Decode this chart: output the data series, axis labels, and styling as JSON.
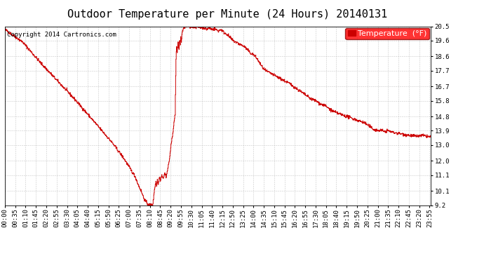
{
  "title": "Outdoor Temperature per Minute (24 Hours) 20140131",
  "copyright_text": "Copyright 2014 Cartronics.com",
  "legend_label": "Temperature  (°F)",
  "line_color": "#cc0000",
  "background_color": "#ffffff",
  "grid_color": "#bbbbbb",
  "ylim": [
    9.2,
    20.5
  ],
  "yticks": [
    9.2,
    10.1,
    11.1,
    12.0,
    13.0,
    13.9,
    14.8,
    15.8,
    16.7,
    17.7,
    18.6,
    19.6,
    20.5
  ],
  "xtick_labels": [
    "00:00",
    "00:35",
    "01:10",
    "01:45",
    "02:20",
    "02:55",
    "03:30",
    "04:05",
    "04:40",
    "05:15",
    "05:50",
    "06:25",
    "07:00",
    "07:35",
    "08:10",
    "08:45",
    "09:20",
    "09:55",
    "10:30",
    "11:05",
    "11:40",
    "12:15",
    "12:50",
    "13:25",
    "14:00",
    "14:35",
    "15:10",
    "15:45",
    "16:20",
    "16:55",
    "17:30",
    "18:05",
    "18:40",
    "19:15",
    "19:50",
    "20:25",
    "21:00",
    "21:35",
    "22:10",
    "22:45",
    "23:20",
    "23:55"
  ],
  "title_fontsize": 11,
  "axis_fontsize": 6.5,
  "copyright_fontsize": 6.5,
  "legend_fontsize": 8,
  "keypoints": [
    [
      0,
      20.3
    ],
    [
      60,
      19.5
    ],
    [
      120,
      18.2
    ],
    [
      180,
      17.0
    ],
    [
      240,
      15.8
    ],
    [
      300,
      14.5
    ],
    [
      360,
      13.2
    ],
    [
      400,
      12.2
    ],
    [
      420,
      11.6
    ],
    [
      440,
      11.0
    ],
    [
      450,
      10.5
    ],
    [
      460,
      10.1
    ],
    [
      470,
      9.6
    ],
    [
      480,
      9.3
    ],
    [
      490,
      9.2
    ],
    [
      500,
      9.25
    ],
    [
      505,
      10.2
    ],
    [
      510,
      10.7
    ],
    [
      512,
      10.4
    ],
    [
      515,
      10.8
    ],
    [
      518,
      10.5
    ],
    [
      522,
      11.0
    ],
    [
      525,
      10.8
    ],
    [
      530,
      11.1
    ],
    [
      535,
      10.9
    ],
    [
      540,
      11.2
    ],
    [
      545,
      11.0
    ],
    [
      550,
      11.5
    ],
    [
      555,
      12.0
    ],
    [
      560,
      12.8
    ],
    [
      565,
      13.5
    ],
    [
      570,
      14.2
    ],
    [
      575,
      15.0
    ],
    [
      578,
      18.5
    ],
    [
      580,
      19.2
    ],
    [
      582,
      18.8
    ],
    [
      585,
      19.5
    ],
    [
      588,
      19.0
    ],
    [
      590,
      19.6
    ],
    [
      592,
      19.3
    ],
    [
      594,
      19.8
    ],
    [
      596,
      19.5
    ],
    [
      598,
      20.0
    ],
    [
      600,
      20.2
    ],
    [
      605,
      20.4
    ],
    [
      610,
      20.5
    ],
    [
      620,
      20.5
    ],
    [
      625,
      20.4
    ],
    [
      630,
      20.5
    ],
    [
      640,
      20.45
    ],
    [
      650,
      20.5
    ],
    [
      660,
      20.4
    ],
    [
      670,
      20.45
    ],
    [
      680,
      20.3
    ],
    [
      690,
      20.4
    ],
    [
      700,
      20.3
    ],
    [
      710,
      20.35
    ],
    [
      720,
      20.2
    ],
    [
      730,
      20.3
    ],
    [
      740,
      20.1
    ],
    [
      750,
      20.0
    ],
    [
      760,
      19.8
    ],
    [
      770,
      19.6
    ],
    [
      780,
      19.5
    ],
    [
      790,
      19.4
    ],
    [
      800,
      19.3
    ],
    [
      810,
      19.2
    ],
    [
      820,
      19.0
    ],
    [
      830,
      18.8
    ],
    [
      840,
      18.7
    ],
    [
      850,
      18.5
    ],
    [
      860,
      18.2
    ],
    [
      870,
      17.9
    ],
    [
      880,
      17.7
    ],
    [
      900,
      17.5
    ],
    [
      920,
      17.3
    ],
    [
      940,
      17.1
    ],
    [
      960,
      16.9
    ],
    [
      975,
      16.7
    ],
    [
      990,
      16.5
    ],
    [
      1005,
      16.3
    ],
    [
      1020,
      16.1
    ],
    [
      1035,
      15.9
    ],
    [
      1050,
      15.8
    ],
    [
      1065,
      15.6
    ],
    [
      1080,
      15.5
    ],
    [
      1095,
      15.3
    ],
    [
      1110,
      15.1
    ],
    [
      1125,
      15.0
    ],
    [
      1140,
      14.9
    ],
    [
      1155,
      14.8
    ],
    [
      1170,
      14.7
    ],
    [
      1185,
      14.6
    ],
    [
      1200,
      14.5
    ],
    [
      1215,
      14.4
    ],
    [
      1230,
      14.2
    ],
    [
      1245,
      14.0
    ],
    [
      1260,
      13.9
    ],
    [
      1270,
      13.95
    ],
    [
      1280,
      13.85
    ],
    [
      1295,
      13.9
    ],
    [
      1310,
      13.8
    ],
    [
      1325,
      13.75
    ],
    [
      1340,
      13.7
    ],
    [
      1355,
      13.65
    ],
    [
      1370,
      13.6
    ],
    [
      1390,
      13.55
    ],
    [
      1410,
      13.6
    ],
    [
      1425,
      13.55
    ],
    [
      1439,
      13.5
    ]
  ]
}
